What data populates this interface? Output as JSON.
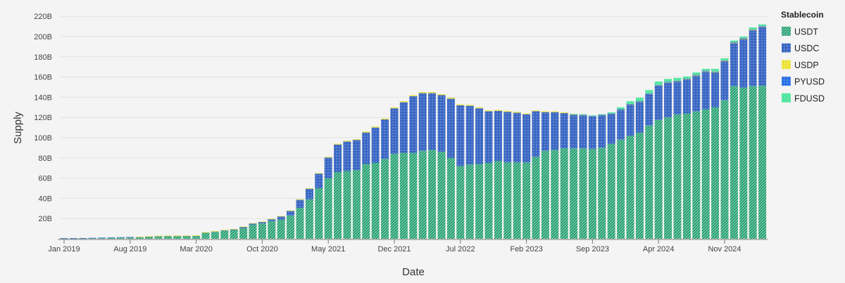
{
  "chart_data": {
    "type": "bar",
    "stacked": true,
    "xlabel": "Date",
    "ylabel": "Supply",
    "ylim": [
      0,
      220
    ],
    "y_unit_suffix": "B",
    "y_ticks": [
      "20B",
      "40B",
      "60B",
      "80B",
      "100B",
      "120B",
      "140B",
      "160B",
      "180B",
      "200B",
      "220B"
    ],
    "x_tick_labels": [
      "Jan 2019",
      "Aug 2019",
      "Mar 2020",
      "Oct 2020",
      "May 2021",
      "Dec 2021",
      "Jul 2022",
      "Feb 2023",
      "Sep 2023",
      "Apr 2024",
      "Nov 2024"
    ],
    "grid": "horizontal",
    "legend": {
      "title": "Stablecoin",
      "placement": "right"
    },
    "categories": [
      "2019-01",
      "2019-02",
      "2019-03",
      "2019-04",
      "2019-05",
      "2019-06",
      "2019-07",
      "2019-08",
      "2019-09",
      "2019-10",
      "2019-11",
      "2019-12",
      "2020-01",
      "2020-02",
      "2020-03",
      "2020-04",
      "2020-05",
      "2020-06",
      "2020-07",
      "2020-08",
      "2020-09",
      "2020-10",
      "2020-11",
      "2020-12",
      "2021-01",
      "2021-02",
      "2021-03",
      "2021-04",
      "2021-05",
      "2021-06",
      "2021-07",
      "2021-08",
      "2021-09",
      "2021-10",
      "2021-11",
      "2021-12",
      "2022-01",
      "2022-02",
      "2022-03",
      "2022-04",
      "2022-05",
      "2022-06",
      "2022-07",
      "2022-08",
      "2022-09",
      "2022-10",
      "2022-11",
      "2022-12",
      "2023-01",
      "2023-02",
      "2023-03",
      "2023-04",
      "2023-05",
      "2023-06",
      "2023-07",
      "2023-08",
      "2023-09",
      "2023-10",
      "2023-11",
      "2023-12",
      "2024-01",
      "2024-02",
      "2024-03",
      "2024-04",
      "2024-05",
      "2024-06",
      "2024-07",
      "2024-08",
      "2024-09",
      "2024-10",
      "2024-11",
      "2024-12",
      "2025-01",
      "2025-02",
      "2025-03"
    ],
    "series": [
      {
        "name": "USDT",
        "color": "#1f9e6e",
        "pattern": "diagonal-hatch",
        "values": [
          0.4,
          0.4,
          0.5,
          0.6,
          0.8,
          1.0,
          1.2,
          1.4,
          1.7,
          2.0,
          2.4,
          2.6,
          2.6,
          2.6,
          2.6,
          5.8,
          6.8,
          7.9,
          8.7,
          10.5,
          14,
          15,
          17.4,
          19,
          23,
          30.5,
          39,
          50,
          60,
          66,
          67,
          68,
          74,
          75,
          79,
          84,
          85,
          85,
          87,
          88,
          86,
          80,
          72,
          73.5,
          74,
          75,
          77,
          75.5,
          75.5,
          75.5,
          81,
          87,
          88,
          89.5,
          89.5,
          89.5,
          89,
          90,
          94,
          98,
          102,
          105,
          112,
          117.5,
          120,
          123,
          124,
          126,
          128,
          130,
          137,
          151,
          149.5,
          151,
          151.5
        ]
      },
      {
        "name": "USDC",
        "color": "#3a67c4",
        "pattern": "dots",
        "values": [
          0.2,
          0.2,
          0.2,
          0.3,
          0.3,
          0.4,
          0.4,
          0.4,
          0.3,
          0.4,
          0.4,
          0.4,
          0.4,
          0.5,
          0.6,
          0.6,
          0.7,
          0.7,
          0.8,
          1.3,
          1.3,
          1.7,
          2.0,
          3.2,
          4.7,
          8.1,
          10.5,
          14.4,
          20.3,
          27.2,
          29.2,
          29.7,
          31.1,
          35,
          39,
          45,
          50,
          56,
          57,
          56,
          56,
          58.5,
          60,
          58,
          55,
          51,
          49.5,
          50,
          49.1,
          47.6,
          45.1,
          38.2,
          37.2,
          34.8,
          33.1,
          32.4,
          32,
          31.9,
          29.3,
          29.5,
          30.7,
          30.4,
          31.1,
          34.1,
          34.5,
          32.7,
          33.8,
          35.4,
          37.3,
          34.8,
          38.8,
          42.8,
          48.4,
          55.5,
          58.3
        ]
      },
      {
        "name": "USDP",
        "color": "#ece33a",
        "pattern": "dots",
        "values": [
          0,
          0,
          0,
          0,
          0,
          0,
          0,
          0,
          0.1,
          0.1,
          0.1,
          0.1,
          0.1,
          0.1,
          0.1,
          0.1,
          0.1,
          0.2,
          0.2,
          0.2,
          0.2,
          0.3,
          0.3,
          0.3,
          0.3,
          0.4,
          0.5,
          0.6,
          0.7,
          0.8,
          0.8,
          0.8,
          0.9,
          1.0,
          1.0,
          1.0,
          1,
          1,
          1,
          1,
          1,
          1,
          1,
          1,
          1,
          1,
          1,
          1,
          0.9,
          0.9,
          0.9,
          0.8,
          0.8,
          0.7,
          0.7,
          0.7,
          0.6,
          0.6,
          0.6,
          0.5,
          0.4,
          0.4,
          0.4,
          0.3,
          0.3,
          0.3,
          0.3,
          0.2,
          0.2,
          0.2,
          0.2,
          0.2,
          0.1,
          0.1,
          0.1
        ]
      },
      {
        "name": "PYUSD",
        "color": "#2a6fe6",
        "pattern": "dots",
        "values": [
          0,
          0,
          0,
          0,
          0,
          0,
          0,
          0,
          0,
          0,
          0,
          0,
          0,
          0,
          0,
          0,
          0,
          0,
          0,
          0,
          0,
          0,
          0,
          0,
          0,
          0,
          0,
          0,
          0,
          0,
          0,
          0,
          0,
          0,
          0,
          0,
          0,
          0,
          0,
          0,
          0,
          0,
          0,
          0,
          0,
          0,
          0,
          0,
          0,
          0,
          0,
          0,
          0,
          0,
          0,
          0.05,
          0.05,
          0.05,
          0.1,
          0.2,
          0.3,
          0.3,
          0.3,
          0.3,
          0.4,
          0.4,
          0.4,
          0.6,
          0.7,
          0.5,
          0.5,
          0.5,
          0.5,
          0.6,
          0.6
        ]
      },
      {
        "name": "FDUSD",
        "color": "#2fe08c",
        "pattern": "diagonal-hatch",
        "values": [
          0,
          0,
          0,
          0,
          0,
          0,
          0,
          0,
          0,
          0,
          0,
          0,
          0,
          0,
          0,
          0,
          0,
          0,
          0,
          0,
          0,
          0,
          0,
          0,
          0,
          0,
          0,
          0,
          0,
          0,
          0,
          0,
          0,
          0,
          0,
          0,
          0,
          0,
          0,
          0,
          0,
          0,
          0,
          0,
          0,
          0,
          0,
          0,
          0,
          0,
          0,
          0,
          0,
          0,
          0.2,
          0.4,
          0.4,
          0.5,
          1.0,
          1.8,
          2.6,
          3.4,
          3.2,
          3.3,
          2.8,
          2.6,
          2.0,
          2.3,
          1.8,
          2.5,
          2.0,
          1.5,
          1.5,
          1.8,
          1.5
        ]
      }
    ]
  }
}
